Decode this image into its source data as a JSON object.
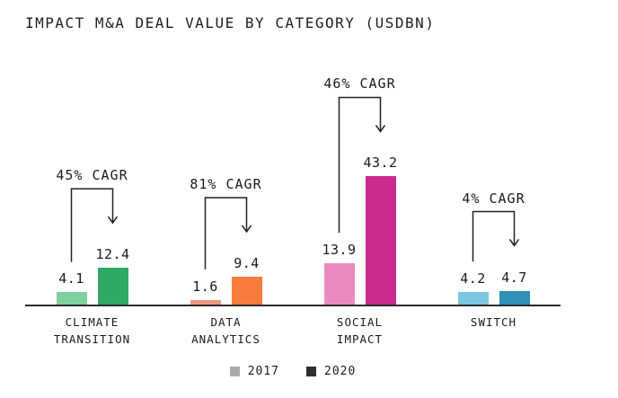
{
  "title": "IMPACT M&A DEAL VALUE BY CATEGORY (USDBN)",
  "chart_data": {
    "type": "bar",
    "title": "IMPACT M&A DEAL VALUE BY CATEGORY (USDBN)",
    "categories": [
      "CLIMATE TRANSITION",
      "DATA ANALYTICS",
      "SOCIAL IMPACT",
      "SWITCH"
    ],
    "series": [
      {
        "name": "2017",
        "values": [
          4.1,
          1.6,
          13.9,
          4.2
        ],
        "colors": [
          "#7fd19e",
          "#f09a80",
          "#e98bbe",
          "#7cc6e2"
        ]
      },
      {
        "name": "2020",
        "values": [
          12.4,
          9.4,
          43.2,
          4.7
        ],
        "colors": [
          "#2fa966",
          "#f77c3d",
          "#c92c8c",
          "#2e90b4"
        ]
      }
    ],
    "cagr_labels": [
      "45% CAGR",
      "81% CAGR",
      "46% CAGR",
      "4% CAGR"
    ],
    "ylim": [
      0,
      45
    ],
    "grid": false,
    "legend_position": "bottom",
    "arrow_color": "#222222",
    "axis_color": "#2b2b2b"
  },
  "legend": {
    "items": [
      {
        "label": "2017",
        "color": "#ababab"
      },
      {
        "label": "2020",
        "color": "#2f2f2f"
      }
    ]
  }
}
